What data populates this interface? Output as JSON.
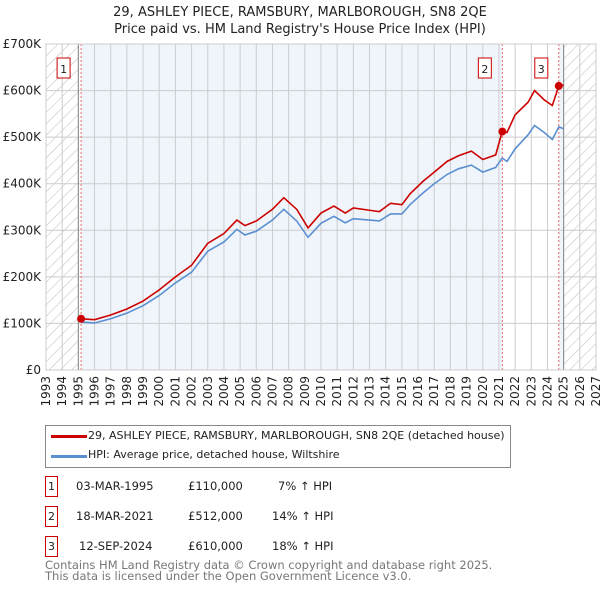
{
  "chart_data": {
    "type": "line",
    "title": "29, ASHLEY PIECE, RAMSBURY, MARLBOROUGH, SN8 2QE",
    "subtitle": "Price paid vs. HM Land Registry's House Price Index (HPI)",
    "xlim": [
      1993,
      2027
    ],
    "ylim": [
      0,
      700000
    ],
    "x_ticks": [
      "1993",
      "1994",
      "1995",
      "1996",
      "1997",
      "1998",
      "1999",
      "2000",
      "2001",
      "2002",
      "2003",
      "2004",
      "2005",
      "2006",
      "2007",
      "2008",
      "2009",
      "2010",
      "2011",
      "2012",
      "2013",
      "2014",
      "2015",
      "2016",
      "2017",
      "2018",
      "2019",
      "2020",
      "2021",
      "2022",
      "2023",
      "2024",
      "2025",
      "2026",
      "2027"
    ],
    "y_ticks": [
      {
        "v": 0,
        "l": "£0"
      },
      {
        "v": 100000,
        "l": "£100K"
      },
      {
        "v": 200000,
        "l": "£200K"
      },
      {
        "v": 300000,
        "l": "£300K"
      },
      {
        "v": 400000,
        "l": "£400K"
      },
      {
        "v": 500000,
        "l": "£500K"
      },
      {
        "v": 600000,
        "l": "£600K"
      },
      {
        "v": 700000,
        "l": "£700K"
      }
    ],
    "grid": true,
    "x": [
      1995.17,
      1996,
      1997,
      1998,
      1999,
      2000,
      2001,
      2002,
      2003,
      2004,
      2004.8,
      2005.3,
      2006,
      2007,
      2007.7,
      2008.5,
      2009.2,
      2010,
      2010.8,
      2011.5,
      2012,
      2013,
      2013.6,
      2014.3,
      2015,
      2015.5,
      2016.3,
      2017,
      2017.8,
      2018.5,
      2019.3,
      2020,
      2020.8,
      2021.2,
      2021.5,
      2022,
      2022.8,
      2023.2,
      2023.8,
      2024.3,
      2024.7,
      2025
    ],
    "series": [
      {
        "name": "29, ASHLEY PIECE, RAMSBURY, MARLBOROUGH, SN8 2QE (detached house)",
        "color": "#cc0000",
        "values": [
          110000,
          108000,
          118000,
          131000,
          148000,
          172000,
          200000,
          225000,
          272000,
          293000,
          322000,
          310000,
          320000,
          345000,
          370000,
          345000,
          305000,
          337000,
          352000,
          337000,
          348000,
          343000,
          340000,
          358000,
          355000,
          378000,
          405000,
          425000,
          448000,
          460000,
          470000,
          452000,
          462000,
          512000,
          510000,
          548000,
          575000,
          600000,
          580000,
          568000,
          610000,
          612000
        ]
      },
      {
        "name": "HPI: Average price, detached house, Wiltshire",
        "color": "#5b8fd0",
        "values": [
          103000,
          101000,
          110000,
          122000,
          138000,
          160000,
          187000,
          210000,
          255000,
          275000,
          302000,
          290000,
          298000,
          322000,
          345000,
          320000,
          285000,
          315000,
          330000,
          316000,
          325000,
          322000,
          320000,
          335000,
          335000,
          355000,
          380000,
          400000,
          420000,
          432000,
          440000,
          425000,
          435000,
          455000,
          448000,
          475000,
          505000,
          525000,
          510000,
          495000,
          522000,
          518000
        ]
      }
    ],
    "sales": [
      {
        "id": "1",
        "x": 1995.17,
        "price": 110000,
        "date": "03-MAR-1995",
        "price_label": "£110,000",
        "hpi": "7% ↑ HPI"
      },
      {
        "id": "2",
        "x": 2021.21,
        "price": 512000,
        "date": "18-MAR-2021",
        "price_label": "£512,000",
        "hpi": "14% ↑ HPI"
      },
      {
        "id": "3",
        "x": 2024.7,
        "price": 610000,
        "date": "12-SEP-2024",
        "price_label": "£610,000",
        "hpi": "18% ↑ HPI"
      }
    ],
    "legend_placement": "below"
  },
  "footer": {
    "line1": "Contains HM Land Registry data © Crown copyright and database right 2025.",
    "line2": "This data is licensed under the Open Government Licence v3.0."
  }
}
